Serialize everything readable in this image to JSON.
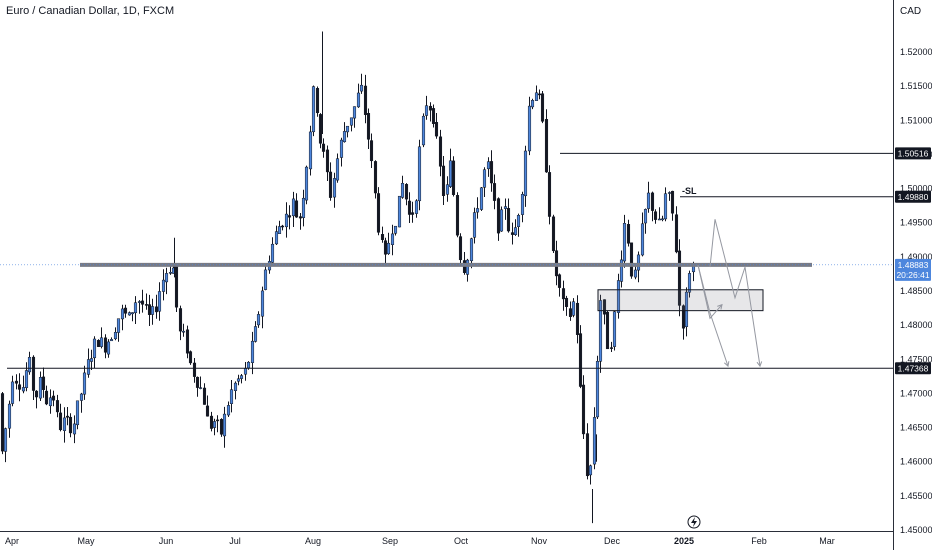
{
  "header": {
    "title": "Euro / Canadian Dollar, 1D, FXCM",
    "currency": "CAD"
  },
  "chart_data": {
    "type": "candlestick",
    "y_ticks": [
      "1.52000",
      "1.51500",
      "1.51000",
      "1.50500",
      "1.50000",
      "1.49500",
      "1.49000",
      "1.48500",
      "1.48000",
      "1.47500",
      "1.47000",
      "1.46500",
      "1.46000",
      "1.45500",
      "1.45000"
    ],
    "x_ticks": [
      "Apr",
      "May",
      "Jun",
      "Jul",
      "Aug",
      "Sep",
      "Oct",
      "Nov",
      "Dec",
      "2025",
      "Feb",
      "Mar"
    ],
    "ylim": [
      1.4497,
      1.5257
    ],
    "grid": false,
    "price_tags": [
      {
        "value": 1.50516,
        "label": "1.50516"
      },
      {
        "value": 1.4988,
        "label": "1.49880"
      },
      {
        "value": 1.47368,
        "label": "1.47368"
      }
    ],
    "current_price": {
      "label": "1.48883",
      "countdown": "20:26:41",
      "value": 1.48883
    },
    "annotations": {
      "sl_label": "-SL"
    },
    "levels": [
      {
        "name": "resistance",
        "value": 1.50516
      },
      {
        "name": "stop-loss",
        "value": 1.4988
      },
      {
        "name": "key-level",
        "value": 1.48883
      },
      {
        "name": "support",
        "value": 1.47368
      }
    ],
    "zone": {
      "top": 1.4843,
      "bottom": 1.483
    },
    "colors": {
      "up": "#4d86dd",
      "down": "#131722",
      "line": "#131722",
      "key_level": "#787b86",
      "projection": "#9598a1"
    }
  }
}
